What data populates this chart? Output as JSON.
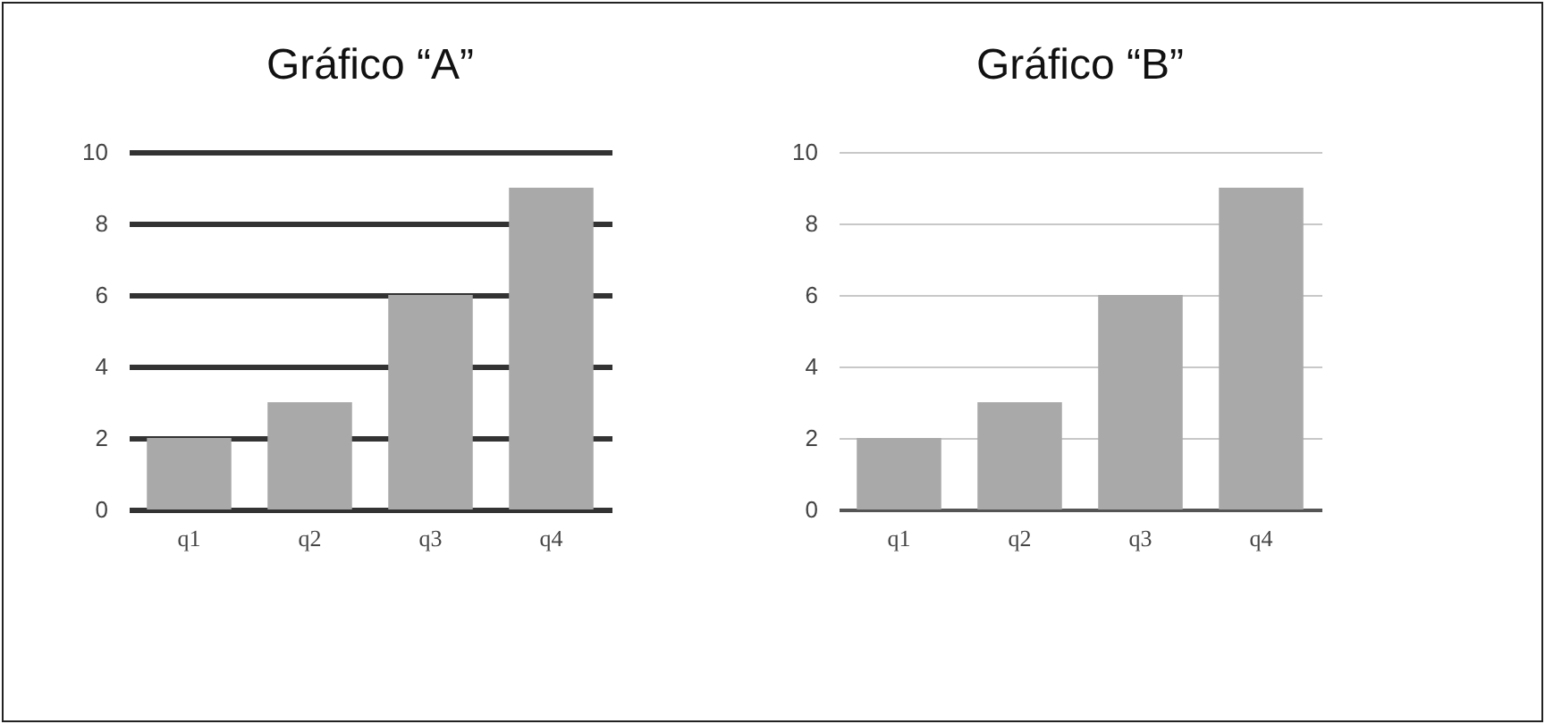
{
  "chart_data": [
    {
      "type": "bar",
      "title": "Gráfico “A”",
      "categories": [
        "q1",
        "q2",
        "q3",
        "q4"
      ],
      "values": [
        2,
        3,
        6,
        9
      ],
      "color": "#a9a9a9",
      "ylim": [
        0,
        10
      ],
      "yticks": [
        0,
        2,
        4,
        6,
        8,
        10
      ],
      "grid": "y"
    },
    {
      "type": "bar",
      "title": "Gráfico “B”",
      "categories": [
        "q1",
        "q2",
        "q3",
        "q4"
      ],
      "values": [
        2,
        3,
        6,
        9
      ],
      "color": "#a9a9a9",
      "ylim": [
        0,
        10
      ],
      "yticks": [
        0,
        2,
        4,
        6,
        8,
        10
      ],
      "grid": "y"
    }
  ]
}
